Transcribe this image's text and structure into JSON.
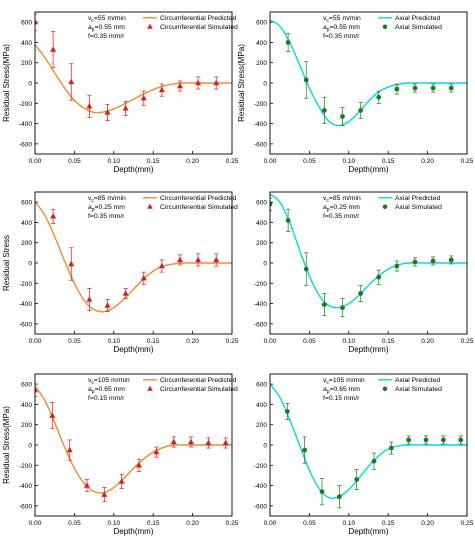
{
  "chart_data": [
    {
      "type": "line",
      "xlabel": "Depth(mm)",
      "ylabel": "Residual Stress(MPa)",
      "xlim": [
        0,
        0.25
      ],
      "ylim": [
        -700,
        700
      ],
      "xticks": [
        "0.00",
        "0.05",
        "0.10",
        "0.15",
        "0.20",
        "0.25"
      ],
      "yticks": [
        "-600",
        "-400",
        "-200",
        "0",
        "200",
        "400",
        "600"
      ],
      "annotations": [
        "v_c=55 m/min",
        "a_p=0.55 mm",
        "f=0.35 mm/r"
      ],
      "annotation_parts": [
        {
          "main": "v",
          "sub": "c",
          "rest": "=55 m/min"
        },
        {
          "main": "a",
          "sub": "p",
          "rest": "=0.55 mm"
        },
        {
          "main": "f=0.35 mm/r",
          "sub": "",
          "rest": ""
        }
      ],
      "series": [
        {
          "name": "Circumferential Predicted",
          "kind": "line",
          "color": "#f28c28",
          "x": [
            0,
            0.0125,
            0.025,
            0.0375,
            0.05,
            0.0625,
            0.075,
            0.0875,
            0.1,
            0.1125,
            0.125,
            0.1375,
            0.15,
            0.1625,
            0.175,
            0.1875,
            0.2,
            0.225,
            0.25
          ],
          "y": [
            380,
            250,
            100,
            -50,
            -170,
            -250,
            -290,
            -285,
            -255,
            -210,
            -160,
            -110,
            -65,
            -30,
            -10,
            0,
            0,
            0,
            0
          ]
        },
        {
          "name": "Circumferential Simulated",
          "kind": "points",
          "marker": "triangle",
          "color": "#d62020",
          "x": [
            0,
            0.023,
            0.046,
            0.069,
            0.092,
            0.115,
            0.138,
            0.161,
            0.184,
            0.207,
            0.23
          ],
          "y": [
            600,
            330,
            10,
            -230,
            -290,
            -250,
            -150,
            -70,
            -30,
            0,
            0
          ],
          "err": [
            80,
            180,
            180,
            110,
            80,
            70,
            70,
            60,
            50,
            60,
            60
          ]
        }
      ]
    },
    {
      "type": "line",
      "xlabel": "Depth(mm)",
      "ylabel": "Residual Stress(MPa)",
      "xlim": [
        0,
        0.25
      ],
      "ylim": [
        -700,
        700
      ],
      "xticks": [
        "0.00",
        "0.05",
        "0.10",
        "0.15",
        "0.20",
        "0.25"
      ],
      "yticks": [
        "-600",
        "-400",
        "-200",
        "0",
        "200",
        "400",
        "600"
      ],
      "annotations": [
        "v_c=55 m/min",
        "a_p=0.55 mm",
        "f=0.35 mm/r"
      ],
      "annotation_parts": [
        {
          "main": "v",
          "sub": "c",
          "rest": "=55 m/min"
        },
        {
          "main": "a",
          "sub": "p",
          "rest": "=0.55 mm"
        },
        {
          "main": "f=0.35 mm/r",
          "sub": "",
          "rest": ""
        }
      ],
      "series": [
        {
          "name": "Axial Predicted",
          "kind": "line",
          "color": "#00d8e8",
          "x": [
            0,
            0.0125,
            0.025,
            0.0375,
            0.05,
            0.0625,
            0.075,
            0.0875,
            0.1,
            0.1125,
            0.125,
            0.1375,
            0.15,
            0.1625,
            0.175,
            0.2,
            0.225,
            0.25
          ],
          "y": [
            620,
            560,
            400,
            180,
            -50,
            -240,
            -380,
            -420,
            -380,
            -290,
            -180,
            -90,
            -40,
            -15,
            0,
            0,
            0,
            0
          ]
        },
        {
          "name": "Axial Simulated",
          "kind": "points",
          "marker": "circle",
          "color": "#1f7a1f",
          "x": [
            0.023,
            0.046,
            0.069,
            0.092,
            0.115,
            0.138,
            0.161,
            0.184,
            0.207,
            0.23
          ],
          "y": [
            400,
            30,
            -270,
            -330,
            -270,
            -140,
            -60,
            -50,
            -50,
            -50
          ],
          "err": [
            90,
            180,
            130,
            90,
            80,
            60,
            50,
            40,
            40,
            40
          ]
        }
      ]
    },
    {
      "type": "line",
      "xlabel": "Depth(mm)",
      "ylabel": "Residual Stress",
      "xlim": [
        0,
        0.25
      ],
      "ylim": [
        -700,
        700
      ],
      "xticks": [
        "0.00",
        "0.05",
        "0.10",
        "0.15",
        "0.20",
        "0.25"
      ],
      "yticks": [
        "-600",
        "-400",
        "-200",
        "0",
        "200",
        "400",
        "600"
      ],
      "annotations": [
        "v_c=85 m/min",
        "a_p=0.25 mm",
        "f=0.35 mm/r"
      ],
      "annotation_parts": [
        {
          "main": "v",
          "sub": "c",
          "rest": "=85 m/min"
        },
        {
          "main": "a",
          "sub": "p",
          "rest": "=0.25 mm"
        },
        {
          "main": "f=0.35 mm/r",
          "sub": "",
          "rest": ""
        }
      ],
      "series": [
        {
          "name": "Circumferential Predicted",
          "kind": "line",
          "color": "#f28c28",
          "x": [
            0,
            0.0125,
            0.025,
            0.0375,
            0.05,
            0.0625,
            0.075,
            0.0875,
            0.1,
            0.1125,
            0.125,
            0.1375,
            0.15,
            0.1625,
            0.175,
            0.1875,
            0.2,
            0.225,
            0.25
          ],
          "y": [
            600,
            470,
            260,
            20,
            -200,
            -370,
            -460,
            -480,
            -440,
            -360,
            -260,
            -160,
            -80,
            -30,
            -10,
            0,
            0,
            0,
            0
          ]
        },
        {
          "name": "Circumferential Simulated",
          "kind": "points",
          "marker": "triangle",
          "color": "#d62020",
          "x": [
            0.023,
            0.046,
            0.069,
            0.092,
            0.115,
            0.138,
            0.161,
            0.184,
            0.207,
            0.23
          ],
          "y": [
            460,
            -10,
            -360,
            -420,
            -300,
            -150,
            -30,
            30,
            30,
            30
          ],
          "err": [
            70,
            160,
            110,
            60,
            50,
            60,
            60,
            50,
            60,
            60
          ]
        }
      ]
    },
    {
      "type": "line",
      "xlabel": "Depth(mm)",
      "ylabel": "",
      "xlim": [
        0,
        0.25
      ],
      "ylim": [
        -700,
        700
      ],
      "xticks": [
        "0.00",
        "0.05",
        "0.10",
        "0.15",
        "0.20",
        "0.25"
      ],
      "yticks": [
        "-600",
        "-400",
        "-200",
        "0",
        "200",
        "400",
        "600"
      ],
      "annotations": [
        "v_c=85 m/min",
        "a_p=0.25 mm",
        "f=0.35 mm/r"
      ],
      "annotation_parts": [
        {
          "main": "v",
          "sub": "c",
          "rest": "=85 m/min"
        },
        {
          "main": "a",
          "sub": "p",
          "rest": "=0.25 mm"
        },
        {
          "main": "f=0.35 mm/r",
          "sub": "",
          "rest": ""
        }
      ],
      "series": [
        {
          "name": "Axial Predicted",
          "kind": "line",
          "color": "#00d8e8",
          "x": [
            0,
            0.0125,
            0.025,
            0.0375,
            0.05,
            0.0625,
            0.075,
            0.0875,
            0.1,
            0.1125,
            0.125,
            0.1375,
            0.15,
            0.1625,
            0.175,
            0.2,
            0.225,
            0.25
          ],
          "y": [
            680,
            600,
            400,
            130,
            -130,
            -320,
            -420,
            -440,
            -400,
            -320,
            -220,
            -130,
            -60,
            -20,
            0,
            0,
            0,
            0
          ]
        },
        {
          "name": "Axial Simulated",
          "kind": "points",
          "marker": "circle",
          "color": "#1f7a1f",
          "x": [
            0,
            0.023,
            0.046,
            0.069,
            0.092,
            0.115,
            0.138,
            0.161,
            0.184,
            0.207,
            0.23
          ],
          "y": [
            580,
            420,
            -60,
            -410,
            -440,
            -300,
            -140,
            -30,
            10,
            20,
            30
          ],
          "err": [
            60,
            110,
            160,
            110,
            90,
            80,
            70,
            50,
            40,
            40,
            40
          ]
        }
      ]
    },
    {
      "type": "line",
      "xlabel": "Depth(mm)",
      "ylabel": "Residual Stress(MPa)",
      "xlim": [
        0,
        0.25
      ],
      "ylim": [
        -700,
        700
      ],
      "xticks": [
        "0.00",
        "0.05",
        "0.10",
        "0.15",
        "0.20",
        "0.25"
      ],
      "yticks": [
        "-600",
        "-400",
        "-200",
        "0",
        "200",
        "400",
        "600"
      ],
      "annotations": [
        "v_c=105 m/min",
        "a_p=0.65 mm",
        "f=0.15 mm/r"
      ],
      "annotation_parts": [
        {
          "main": "v",
          "sub": "c",
          "rest": "=105 m/min"
        },
        {
          "main": "a",
          "sub": "p",
          "rest": "=0.65 mm"
        },
        {
          "main": "f=0.15 mm/r",
          "sub": "",
          "rest": ""
        }
      ],
      "series": [
        {
          "name": "Circumferential Predicted",
          "kind": "line",
          "color": "#f28c28",
          "x": [
            0,
            0.0125,
            0.025,
            0.0375,
            0.05,
            0.0625,
            0.075,
            0.0875,
            0.1,
            0.1125,
            0.125,
            0.1375,
            0.15,
            0.1625,
            0.175,
            0.1875,
            0.2,
            0.225,
            0.25
          ],
          "y": [
            580,
            440,
            220,
            -20,
            -230,
            -380,
            -460,
            -470,
            -420,
            -330,
            -230,
            -140,
            -70,
            -25,
            0,
            0,
            0,
            0,
            0
          ]
        },
        {
          "name": "Circumferential Simulated",
          "kind": "points",
          "marker": "triangle",
          "color": "#d62020",
          "x": [
            0,
            0.022,
            0.044,
            0.066,
            0.088,
            0.11,
            0.132,
            0.154,
            0.176,
            0.198,
            0.22,
            0.242
          ],
          "y": [
            540,
            290,
            -50,
            -400,
            -490,
            -360,
            -200,
            -70,
            30,
            30,
            20,
            20
          ],
          "err": [
            60,
            130,
            100,
            60,
            70,
            70,
            60,
            50,
            50,
            50,
            50,
            50
          ]
        }
      ]
    },
    {
      "type": "line",
      "xlabel": "Depth(mm)",
      "ylabel": "",
      "xlim": [
        0,
        0.25
      ],
      "ylim": [
        -700,
        700
      ],
      "xticks": [
        "0.00",
        "0.05",
        "0.10",
        "0.15",
        "0.20",
        "0.25"
      ],
      "yticks": [
        "-600",
        "-400",
        "-200",
        "0",
        "200",
        "400",
        "600"
      ],
      "annotations": [
        "v_c=105 m/min",
        "a_p=0.65 mm",
        "f=0.15 mm/r"
      ],
      "annotation_parts": [
        {
          "main": "v",
          "sub": "c",
          "rest": "=105 m/min"
        },
        {
          "main": "a",
          "sub": "p",
          "rest": "=0.65 mm"
        },
        {
          "main": "f=0.15 mm/r",
          "sub": "",
          "rest": ""
        }
      ],
      "series": [
        {
          "name": "Axial Predicted",
          "kind": "line",
          "color": "#00d8e8",
          "x": [
            0,
            0.0125,
            0.025,
            0.0375,
            0.05,
            0.0625,
            0.075,
            0.0875,
            0.1,
            0.1125,
            0.125,
            0.1375,
            0.15,
            0.1625,
            0.175,
            0.2,
            0.225,
            0.25
          ],
          "y": [
            600,
            470,
            250,
            0,
            -250,
            -430,
            -520,
            -510,
            -440,
            -330,
            -210,
            -110,
            -40,
            -10,
            0,
            0,
            0,
            0
          ]
        },
        {
          "name": "Axial Simulated",
          "kind": "points",
          "marker": "circle",
          "color": "#1f7a1f",
          "x": [
            0.022,
            0.044,
            0.066,
            0.088,
            0.11,
            0.132,
            0.154,
            0.176,
            0.198,
            0.22,
            0.242
          ],
          "y": [
            330,
            -50,
            -460,
            -510,
            -340,
            -160,
            -30,
            50,
            50,
            50,
            50
          ],
          "err": [
            80,
            130,
            130,
            110,
            100,
            80,
            60,
            40,
            40,
            40,
            40
          ]
        }
      ]
    }
  ]
}
